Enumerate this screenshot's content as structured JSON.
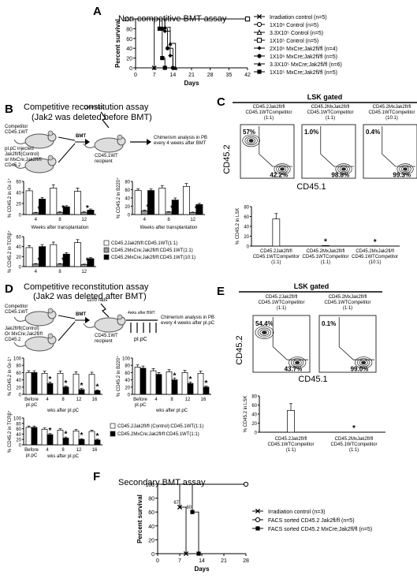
{
  "panels": {
    "A": {
      "letter": "A",
      "title": "Non-competitive BMT assay",
      "ylabel": "Percent survival",
      "xlabel": "Days",
      "xticks": [
        "0",
        "7",
        "14",
        "21",
        "28",
        "35",
        "42"
      ],
      "yticks": [
        "0",
        "20",
        "40",
        "60",
        "80",
        "100"
      ],
      "legend": [
        {
          "marker": "cross",
          "label": "Irradiation control (n=5)"
        },
        {
          "marker": "circle-open",
          "label": "1X10⁶ Control (n=5)"
        },
        {
          "marker": "triangle-open",
          "label": "3.3X10⁵ Control (n=5)"
        },
        {
          "marker": "square-open",
          "label": "1X10⁵ Control (n=5)"
        },
        {
          "marker": "diamond",
          "label": "2X10⁶ MxCre;Jak2fl/fl (n=4)"
        },
        {
          "marker": "circle",
          "label": "1X10⁶ MxCre;Jak2fl/fl (n=5)"
        },
        {
          "marker": "triangle",
          "label": "3.3X10⁵ MxCre;Jak2fl/fl (n=6)"
        },
        {
          "marker": "square",
          "label": "1X10⁵ MxCre;Jak2fl/fl (n=5)"
        }
      ]
    },
    "B": {
      "letter": "B",
      "title": "Competitive reconstitution assay",
      "subtitle": "(Jak2 was deleted before BMT)",
      "competitor": "Competitor\nCD45.1WT",
      "donor": "pI.pC injected\nJak2fl/fl(Control)\nor MxCre;Jak2fl/fl\nCD45.2",
      "bmt": "BMT",
      "rads": "1100 rads",
      "recipient": "CD45.1WT\nrecipient",
      "analysis": "Chimerism analysis in PB\nevery 4 weeks after BMT",
      "charts": [
        {
          "ylabel": "% CD45.2 in Gr-1⁺",
          "yticks": [
            "0",
            "20",
            "40",
            "60"
          ]
        },
        {
          "ylabel": "% CD45.2 in B220⁺",
          "yticks": [
            "0",
            "20",
            "40",
            "60",
            "80"
          ]
        },
        {
          "ylabel": "% CD45.2 in TCRβ⁺",
          "yticks": [
            "0",
            "20",
            "40",
            "60"
          ]
        }
      ],
      "xticks": [
        "4",
        "8",
        "12"
      ],
      "xlabel": "Weeks after transplantation",
      "legend": [
        {
          "fill": "white",
          "label": "CD45.2Jak2fl/fl:CD45.1WT(1:1)"
        },
        {
          "fill": "gray",
          "label": "CD45.2MxCre;Jak2fl/fl:CD45.1WT(1:1)"
        },
        {
          "fill": "black",
          "label": "CD45.2MxCre;Jak2fl/fl:CD45.1WT(10:1)"
        }
      ]
    },
    "C": {
      "letter": "C",
      "title": "LSK gated",
      "yaxis": "CD45.2",
      "xaxis": "CD45.1",
      "plots": [
        {
          "label": "CD45.2Jak2fl/fl\nCD45.1WTCompetitor\n(1:1)",
          "tl": "57%",
          "br": "42.2%"
        },
        {
          "label": "CD45.2MxJak2fl/fl\nCD45.1WTCompetitor\n(1:1)",
          "tl": "1.0%",
          "br": "98.8%"
        },
        {
          "label": "CD45.2MxJak2fl/fl\nCD45.1WTCompetitor\n(10:1)",
          "tl": "0.4%",
          "br": "99.3%"
        }
      ],
      "bar_ylabel": "% CD45.2 in LSK",
      "bar_yticks": [
        "0",
        "20",
        "40",
        "60",
        "80"
      ],
      "bar_xlabels": [
        "CD45.2Jak2fl/fl\nCD45.1WTCompetitor\n(1:1)",
        "CD45.2MxJak2fl/fl\nCD45.1WTCompetitor\n(1:1)",
        "CD45.2MxJak2fl/fl\nCD45.1WTCompetitor\n(10:1)"
      ]
    },
    "D": {
      "letter": "D",
      "title": "Competitive reconstitution assay",
      "subtitle": "(Jak2 was deleted after BMT)",
      "competitor": "Competitor\nCD45.1WT",
      "donor": "Jak2fl/fl(Control)\nOr MxCre;Jak2fl/fl\nCD45.2",
      "bmt": "BMT",
      "rads": "1100 rads",
      "recipient": "CD45.1WT\nrecipient",
      "after": "4wks after BMT",
      "pipc": "pI.pC",
      "analysis": "Chimerism analysis in PB\nevery 4 weeks after pI.pC",
      "charts": [
        {
          "ylabel": "% CD45.2 in Gr-1⁺",
          "yticks": [
            "0",
            "20",
            "40",
            "60",
            "80",
            "100"
          ]
        },
        {
          "ylabel": "% CD45.2 in B220⁺",
          "yticks": [
            "0",
            "20",
            "40",
            "60",
            "80",
            "100"
          ]
        },
        {
          "ylabel": "% CD45.2 in TCRβ⁺",
          "yticks": [
            "0",
            "20",
            "40",
            "60",
            "80",
            "100"
          ]
        }
      ],
      "xticks": [
        "Before\npI.pC",
        "4",
        "8",
        "12",
        "16"
      ],
      "xlabel": "wks after pI.pC",
      "legend": [
        {
          "fill": "white",
          "label": "CD45.2Jak2fl/fl (Control):CD45.1WT(1:1)"
        },
        {
          "fill": "black",
          "label": "CD45.2MxCre;Jak2fl/fl:CD45.1WT(1:1)"
        }
      ]
    },
    "E": {
      "letter": "E",
      "title": "LSK gated",
      "yaxis": "CD45.2",
      "xaxis": "CD45.1",
      "plots": [
        {
          "label": "CD45.2Jak2fl/fl\nCD45.1WTCompetitor\n(1:1)",
          "tl": "54.4%",
          "br": "43.7%"
        },
        {
          "label": "CD45.2MxJak2fl/fl\nCD45.1WTCompetitor\n(1:1)",
          "tl": "0.1%",
          "br": "99.0%"
        }
      ],
      "bar_ylabel": "% CD45.2 in LSK",
      "bar_yticks": [
        "0",
        "20",
        "40",
        "60",
        "80"
      ],
      "bar_xlabels": [
        "CD45.2Jak2fl/fl\nCD45.1WTCompetitor\n(1:1)",
        "CD45.2MxJak2fl/fl\nCD45.1WTCompetitor\n(1:1)"
      ]
    },
    "F": {
      "letter": "F",
      "title": "Secondary BMT assay",
      "ylabel": "Percent survival",
      "xlabel": "Days",
      "xticks": [
        "0",
        "7",
        "14",
        "21",
        "28"
      ],
      "yticks": [
        "0",
        "20",
        "40",
        "60",
        "80",
        "100"
      ],
      "point_labels": [
        "67",
        "60"
      ],
      "legend": [
        {
          "marker": "cross",
          "label": "Irradiation control (n=3)"
        },
        {
          "marker": "circle-open",
          "label": "FACS sorted CD45.2 Jak2fl/fl (n=5)"
        },
        {
          "marker": "square",
          "label": "FACS sorted CD45.2 MxCre;Jak2fl/fl (n=5)"
        }
      ]
    }
  },
  "chart_data": [
    {
      "panel": "A",
      "type": "line",
      "step": true,
      "xlabel": "Days",
      "ylabel": "Percent survival",
      "xlim": [
        0,
        42
      ],
      "ylim": [
        0,
        100
      ],
      "series": [
        {
          "name": "Irradiation control (n=5)",
          "x": [
            0,
            7,
            7,
            14
          ],
          "y": [
            100,
            100,
            0,
            0
          ]
        },
        {
          "name": "1X10⁶ Control (n=5)",
          "x": [
            0,
            42
          ],
          "y": [
            100,
            100
          ]
        },
        {
          "name": "3.3X10⁵ Control (n=5)",
          "x": [
            0,
            42
          ],
          "y": [
            100,
            100
          ]
        },
        {
          "name": "1X10⁵ Control (n=5)",
          "x": [
            0,
            42
          ],
          "y": [
            100,
            100
          ]
        },
        {
          "name": "2X10⁶ MxCre;Jak2fl/fl (n=4)",
          "x": [
            0,
            11,
            11,
            13,
            13,
            14,
            14,
            16
          ],
          "y": [
            100,
            100,
            75,
            75,
            25,
            25,
            0,
            0
          ]
        },
        {
          "name": "1X10⁶ MxCre;Jak2fl/fl (n=5)",
          "x": [
            0,
            10,
            10,
            12,
            12,
            14,
            14,
            16
          ],
          "y": [
            100,
            100,
            80,
            80,
            40,
            40,
            0,
            0
          ]
        },
        {
          "name": "3.3X10⁵ MxCre;Jak2fl/fl (n=6)",
          "x": [
            0,
            11,
            11,
            13,
            13,
            15,
            15,
            16
          ],
          "y": [
            100,
            100,
            83,
            83,
            50,
            50,
            0,
            0
          ]
        },
        {
          "name": "1X10⁵ MxCre;Jak2fl/fl (n=5)",
          "x": [
            0,
            9,
            9,
            10,
            10,
            11,
            11,
            14
          ],
          "y": [
            100,
            100,
            80,
            80,
            20,
            20,
            0,
            0
          ]
        }
      ]
    },
    {
      "panel": "B-Gr1",
      "type": "bar",
      "categories": [
        "4",
        "8",
        "12"
      ],
      "ylabel": "% CD45.2 in Gr-1⁺",
      "ylim": [
        0,
        60
      ],
      "series": [
        {
          "name": "CD45.2Jak2fl/fl:CD45.1WT(1:1)",
          "values": [
            43,
            48,
            42
          ],
          "err": [
            4,
            6,
            6
          ]
        },
        {
          "name": "CD45.2MxCre;Jak2fl/fl:CD45.1WT(1:1)",
          "values": [
            3,
            4,
            4
          ],
          "err": [
            1,
            1,
            1
          ]
        },
        {
          "name": "CD45.2MxCre;Jak2fl/fl:CD45.1WT(10:1)",
          "values": [
            28,
            14,
            8
          ],
          "err": [
            3,
            2,
            2
          ]
        }
      ],
      "stars": [
        1,
        1,
        1
      ]
    },
    {
      "panel": "B-B220",
      "type": "bar",
      "categories": [
        "4",
        "8",
        "12"
      ],
      "ylabel": "% CD45.2 in B220⁺",
      "ylim": [
        0,
        80
      ],
      "series": [
        {
          "name": "CD45.2Jak2fl/fl:CD45.1WT(1:1)",
          "values": [
            58,
            64,
            68
          ],
          "err": [
            4,
            6,
            7
          ]
        },
        {
          "name": "CD45.2MxCre;Jak2fl/fl:CD45.1WT(1:1)",
          "values": [
            9,
            6,
            5
          ],
          "err": [
            2,
            1,
            1
          ]
        },
        {
          "name": "CD45.2MxCre;Jak2fl/fl:CD45.1WT(10:1)",
          "values": [
            58,
            35,
            24
          ],
          "err": [
            4,
            5,
            3
          ]
        }
      ],
      "stars": [
        1,
        1,
        1
      ]
    },
    {
      "panel": "B-TCRb",
      "type": "bar",
      "categories": [
        "4",
        "8",
        "12"
      ],
      "ylabel": "% CD45.2 in TCRβ⁺",
      "ylim": [
        0,
        60
      ],
      "series": [
        {
          "name": "CD45.2Jak2fl/fl:CD45.1WT(1:1)",
          "values": [
            38,
            44,
            48
          ],
          "err": [
            4,
            5,
            6
          ]
        },
        {
          "name": "CD45.2MxCre;Jak2fl/fl:CD45.1WT(1:1)",
          "values": [
            5,
            5,
            4
          ],
          "err": [
            1,
            1,
            1
          ]
        },
        {
          "name": "CD45.2MxCre;Jak2fl/fl:CD45.1WT(10:1)",
          "values": [
            40,
            25,
            16
          ],
          "err": [
            4,
            3,
            2
          ]
        }
      ],
      "stars": [
        1,
        1,
        1
      ]
    },
    {
      "panel": "C-bar",
      "type": "bar",
      "categories": [
        "CD45.2Jak2fl/fl CD45.1WTCompetitor (1:1)",
        "CD45.2MxJak2fl/fl CD45.1WTCompetitor (1:1)",
        "CD45.2MxJak2fl/fl CD45.1WTCompetitor (10:1)"
      ],
      "ylabel": "% CD45.2 in LSK",
      "ylim": [
        0,
        80
      ],
      "values": [
        55,
        1,
        0.4
      ],
      "err": [
        11,
        0,
        0
      ],
      "stars": [
        0,
        1,
        1
      ]
    },
    {
      "panel": "D-Gr1",
      "type": "bar",
      "categories": [
        "Before pI.pC",
        "4",
        "8",
        "12",
        "16"
      ],
      "ylabel": "% CD45.2 in Gr-1⁺",
      "ylim": [
        0,
        100
      ],
      "series": [
        {
          "name": "CD45.2Jak2fl/fl (Control):CD45.1WT(1:1)",
          "values": [
            60,
            58,
            58,
            56,
            55
          ],
          "err": [
            5,
            6,
            6,
            6,
            6
          ]
        },
        {
          "name": "CD45.2MxCre;Jak2fl/fl:CD45.1WT(1:1)",
          "values": [
            60,
            30,
            20,
            13,
            10
          ],
          "err": [
            5,
            4,
            3,
            3,
            2
          ]
        }
      ],
      "stars": [
        0,
        1,
        1,
        1,
        1
      ]
    },
    {
      "panel": "D-B220",
      "type": "bar",
      "categories": [
        "Before pI.pC",
        "4",
        "8",
        "12",
        "16"
      ],
      "ylabel": "% CD45.2 in B220⁺",
      "ylim": [
        0,
        100
      ],
      "series": [
        {
          "name": "CD45.2Jak2fl/fl (Control):CD45.1WT(1:1)",
          "values": [
            75,
            65,
            62,
            60,
            58
          ],
          "err": [
            6,
            6,
            6,
            6,
            6
          ]
        },
        {
          "name": "CD45.2MxCre;Jak2fl/fl:CD45.1WT(1:1)",
          "values": [
            72,
            55,
            40,
            30,
            20
          ],
          "err": [
            6,
            5,
            5,
            4,
            3
          ]
        }
      ],
      "stars": [
        0,
        0,
        1,
        1,
        1
      ]
    },
    {
      "panel": "D-TCRb",
      "type": "bar",
      "categories": [
        "Before pI.pC",
        "4",
        "8",
        "12",
        "16"
      ],
      "ylabel": "% CD45.2 in TCRβ⁺",
      "ylim": [
        0,
        100
      ],
      "series": [
        {
          "name": "CD45.2Jak2fl/fl (Control):CD45.1WT(1:1)",
          "values": [
            65,
            58,
            55,
            52,
            50
          ],
          "err": [
            5,
            5,
            5,
            5,
            5
          ]
        },
        {
          "name": "CD45.2MxCre;Jak2fl/fl:CD45.1WT(1:1)",
          "values": [
            65,
            38,
            25,
            20,
            18
          ],
          "err": [
            5,
            4,
            4,
            3,
            3
          ]
        }
      ],
      "stars": [
        0,
        1,
        1,
        1,
        1
      ]
    },
    {
      "panel": "E-bar",
      "type": "bar",
      "categories": [
        "CD45.2Jak2fl/fl CD45.1WTCompetitor (1:1)",
        "CD45.2MxJak2fl/fl CD45.1WTCompetitor (1:1)"
      ],
      "ylabel": "% CD45.2 in LSK",
      "ylim": [
        0,
        80
      ],
      "values": [
        48,
        0.1
      ],
      "err": [
        15,
        0
      ],
      "stars": [
        0,
        1
      ]
    },
    {
      "panel": "F",
      "type": "line",
      "step": true,
      "xlabel": "Days",
      "ylabel": "Percent survival",
      "xlim": [
        0,
        28
      ],
      "ylim": [
        0,
        100
      ],
      "series": [
        {
          "name": "Irradiation control (n=3)",
          "x": [
            0,
            7,
            7,
            9,
            9,
            14
          ],
          "y": [
            100,
            100,
            67,
            67,
            0,
            0
          ]
        },
        {
          "name": "FACS sorted CD45.2 Jak2fl/fl (n=5)",
          "x": [
            0,
            28
          ],
          "y": [
            100,
            100
          ]
        },
        {
          "name": "FACS sorted CD45.2 MxCre;Jak2fl/fl (n=5)",
          "x": [
            0,
            11,
            11,
            13,
            13,
            16
          ],
          "y": [
            100,
            100,
            60,
            60,
            0,
            0
          ]
        }
      ]
    }
  ]
}
